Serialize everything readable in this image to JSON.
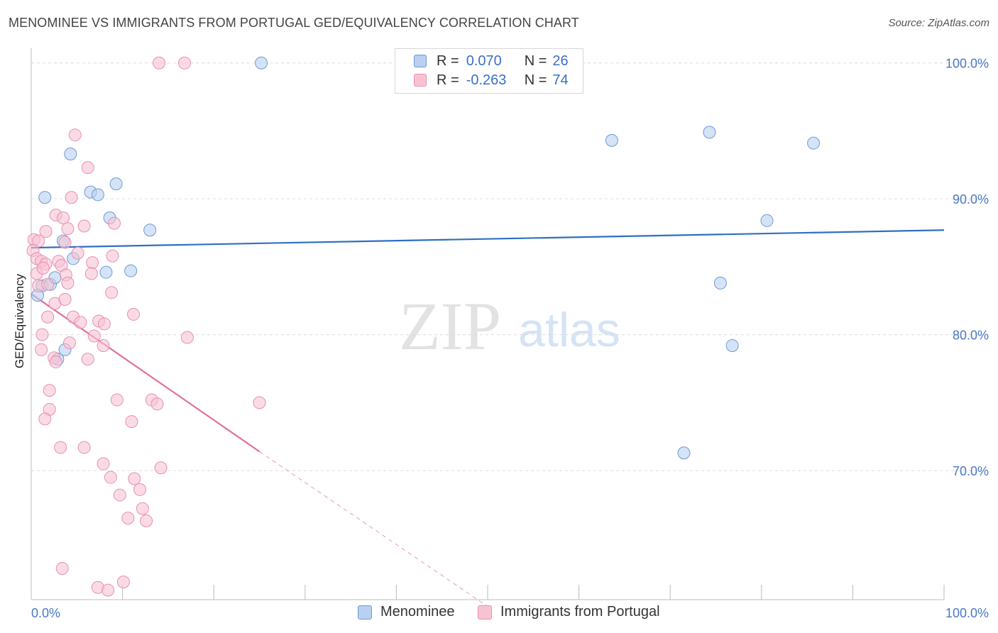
{
  "title": "MENOMINEE VS IMMIGRANTS FROM PORTUGAL GED/EQUIVALENCY CORRELATION CHART",
  "source": "Source: ZipAtlas.com",
  "watermark": {
    "zip": "ZIP",
    "atlas": "atlas"
  },
  "colors": {
    "blue_fill": "#b9d0f0",
    "blue_stroke": "#6d9ad8",
    "blue_line": "#2f6fc4",
    "pink_fill": "#f7c3d3",
    "pink_stroke": "#e890ad",
    "pink_line": "#e0709a",
    "tick_text": "#4a78c4",
    "grid": "#dcdcdc"
  },
  "legend": {
    "rows": [
      {
        "r_label": "R =",
        "r_value": "0.070",
        "n_label": "N =",
        "n_value": "26"
      },
      {
        "r_label": "R =",
        "r_value": "-0.263",
        "n_label": "N =",
        "n_value": "74"
      }
    ]
  },
  "bottom_legend": {
    "items": [
      {
        "label": "Menominee"
      },
      {
        "label": "Immigrants from Portugal"
      }
    ]
  },
  "chart_data": {
    "type": "scatter",
    "xlabel": "",
    "ylabel": "GED/Equivalency",
    "xlim": [
      0,
      100
    ],
    "ylim": [
      60.5,
      101.5
    ],
    "x_tick_labels": {
      "left": "0.0%",
      "right": "100.0%"
    },
    "y_ticks": [
      100,
      90,
      80,
      70
    ],
    "y_tick_labels": [
      "100.0%",
      "90.0%",
      "80.0%",
      "70.0%"
    ],
    "series": [
      {
        "name": "Menominee",
        "trend": {
          "x": [
            0,
            100
          ],
          "y": [
            86.4,
            87.7
          ],
          "dashed_to": null
        },
        "points": [
          [
            25.2,
            100.0
          ],
          [
            4.3,
            93.3
          ],
          [
            1.5,
            90.1
          ],
          [
            6.5,
            90.5
          ],
          [
            7.3,
            90.3
          ],
          [
            9.3,
            91.1
          ],
          [
            8.6,
            88.6
          ],
          [
            13.0,
            87.7
          ],
          [
            3.5,
            86.9
          ],
          [
            4.6,
            85.6
          ],
          [
            8.2,
            84.6
          ],
          [
            10.9,
            84.7
          ],
          [
            1.2,
            83.6
          ],
          [
            2.1,
            83.7
          ],
          [
            2.6,
            84.2
          ],
          [
            0.7,
            82.9
          ],
          [
            3.7,
            78.9
          ],
          [
            2.9,
            78.2
          ],
          [
            63.6,
            94.3
          ],
          [
            74.3,
            94.9
          ],
          [
            85.7,
            94.1
          ],
          [
            80.6,
            88.4
          ],
          [
            75.5,
            83.8
          ],
          [
            76.8,
            79.2
          ],
          [
            71.5,
            71.3
          ]
        ]
      },
      {
        "name": "Immigrants from Portugal",
        "trend": {
          "x": [
            0,
            25
          ],
          "y": [
            83.0,
            71.4
          ],
          "dashed_to": [
            50,
            60.0
          ]
        },
        "points": [
          [
            14.0,
            100.0
          ],
          [
            16.8,
            100.0
          ],
          [
            4.8,
            94.7
          ],
          [
            6.2,
            92.3
          ],
          [
            4.4,
            90.1
          ],
          [
            2.7,
            88.8
          ],
          [
            3.5,
            88.6
          ],
          [
            5.8,
            88.0
          ],
          [
            9.1,
            88.2
          ],
          [
            1.6,
            87.6
          ],
          [
            4.0,
            87.8
          ],
          [
            0.3,
            87.0
          ],
          [
            0.8,
            86.9
          ],
          [
            3.7,
            86.8
          ],
          [
            0.2,
            86.2
          ],
          [
            0.6,
            85.6
          ],
          [
            1.1,
            85.4
          ],
          [
            1.6,
            85.2
          ],
          [
            3.0,
            85.4
          ],
          [
            3.3,
            85.1
          ],
          [
            5.1,
            86.0
          ],
          [
            6.7,
            85.3
          ],
          [
            8.9,
            85.8
          ],
          [
            0.6,
            84.5
          ],
          [
            1.3,
            84.9
          ],
          [
            3.8,
            84.4
          ],
          [
            6.6,
            84.5
          ],
          [
            0.8,
            83.6
          ],
          [
            1.8,
            83.7
          ],
          [
            4.0,
            83.8
          ],
          [
            8.8,
            83.1
          ],
          [
            2.6,
            82.3
          ],
          [
            3.7,
            82.6
          ],
          [
            1.8,
            81.3
          ],
          [
            4.6,
            81.3
          ],
          [
            5.4,
            80.9
          ],
          [
            7.4,
            81.0
          ],
          [
            8.0,
            80.8
          ],
          [
            11.2,
            81.5
          ],
          [
            1.2,
            80.0
          ],
          [
            6.9,
            79.9
          ],
          [
            7.9,
            79.2
          ],
          [
            4.2,
            79.4
          ],
          [
            17.1,
            79.8
          ],
          [
            1.1,
            78.9
          ],
          [
            2.5,
            78.3
          ],
          [
            2.7,
            78.0
          ],
          [
            6.2,
            78.2
          ],
          [
            2.0,
            75.9
          ],
          [
            9.4,
            75.2
          ],
          [
            13.2,
            75.2
          ],
          [
            13.8,
            74.9
          ],
          [
            25.0,
            75.0
          ],
          [
            2.0,
            74.5
          ],
          [
            1.5,
            73.8
          ],
          [
            11.0,
            73.6
          ],
          [
            3.2,
            71.7
          ],
          [
            5.8,
            71.7
          ],
          [
            7.9,
            70.5
          ],
          [
            14.2,
            70.2
          ],
          [
            8.7,
            69.5
          ],
          [
            11.3,
            69.4
          ],
          [
            11.9,
            68.6
          ],
          [
            9.7,
            68.2
          ],
          [
            12.2,
            67.2
          ],
          [
            10.6,
            66.5
          ],
          [
            12.6,
            66.3
          ],
          [
            3.4,
            62.8
          ],
          [
            10.1,
            61.8
          ],
          [
            7.3,
            61.4
          ],
          [
            8.4,
            61.2
          ]
        ]
      }
    ]
  }
}
